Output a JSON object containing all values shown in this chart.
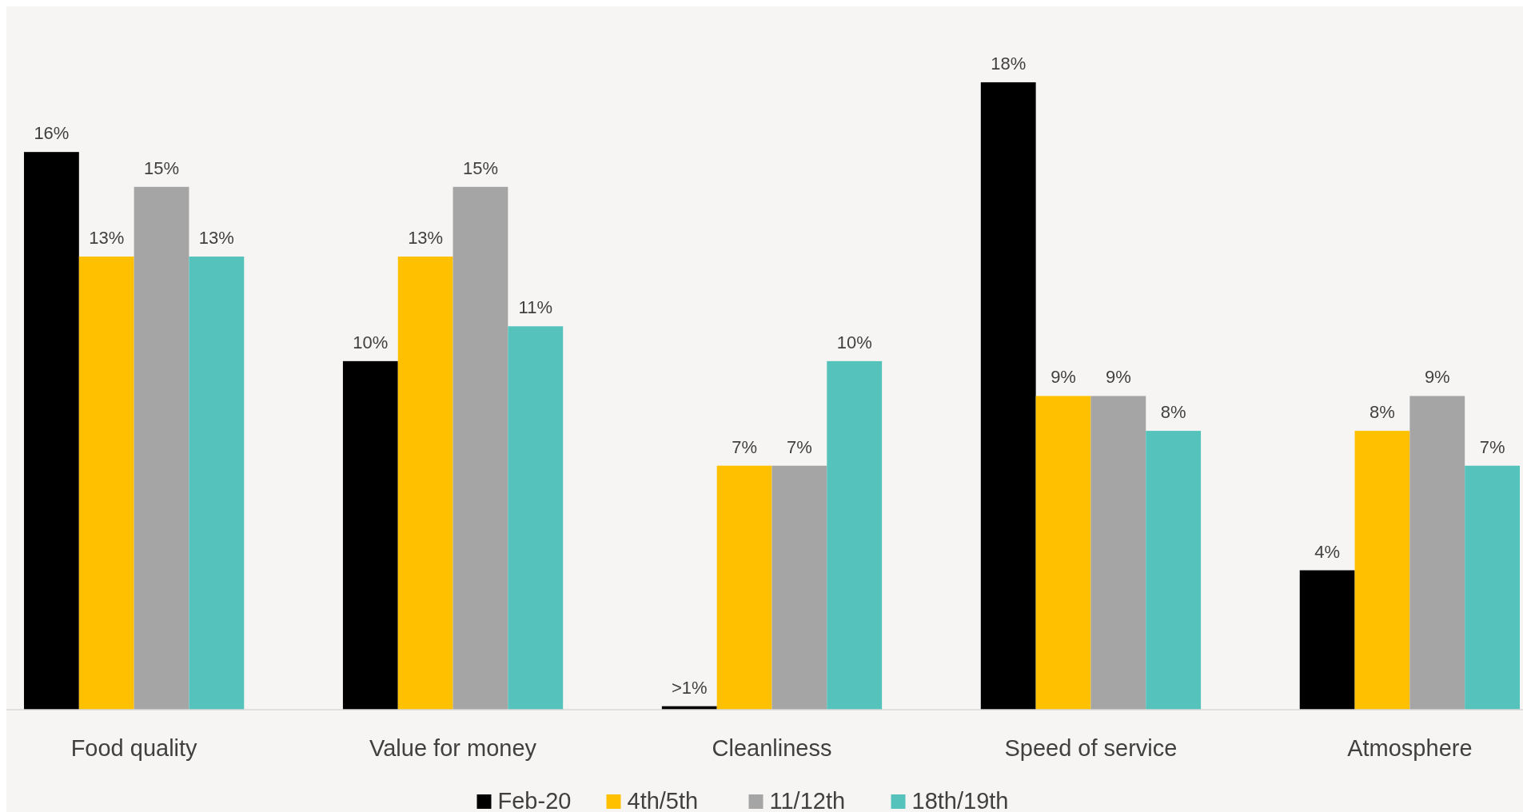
{
  "chart_data": {
    "type": "bar",
    "categories": [
      "Food quality",
      "Value for money",
      "Cleanliness",
      "Speed of service",
      "Atmosphere"
    ],
    "series": [
      {
        "name": "Feb-20",
        "color": "#000000",
        "values": [
          16,
          10,
          0.1,
          18,
          4
        ],
        "value_labels": [
          "16%",
          "10%",
          ">1%",
          "18%",
          "4%"
        ]
      },
      {
        "name": "4th/5th",
        "color": "#ffc000",
        "values": [
          13,
          13,
          7,
          9,
          8
        ],
        "value_labels": [
          "13%",
          "13%",
          "7%",
          "9%",
          "8%"
        ]
      },
      {
        "name": "11/12th",
        "color": "#a5a5a5",
        "values": [
          15,
          15,
          7,
          9,
          9
        ],
        "value_labels": [
          "15%",
          "15%",
          "7%",
          "9%",
          "9%"
        ]
      },
      {
        "name": "18th/19th",
        "color": "#56c2bc",
        "values": [
          13,
          11,
          10,
          8,
          7
        ],
        "value_labels": [
          "13%",
          "11%",
          "10%",
          "8%",
          "7%"
        ]
      }
    ],
    "legend": "bottom"
  }
}
